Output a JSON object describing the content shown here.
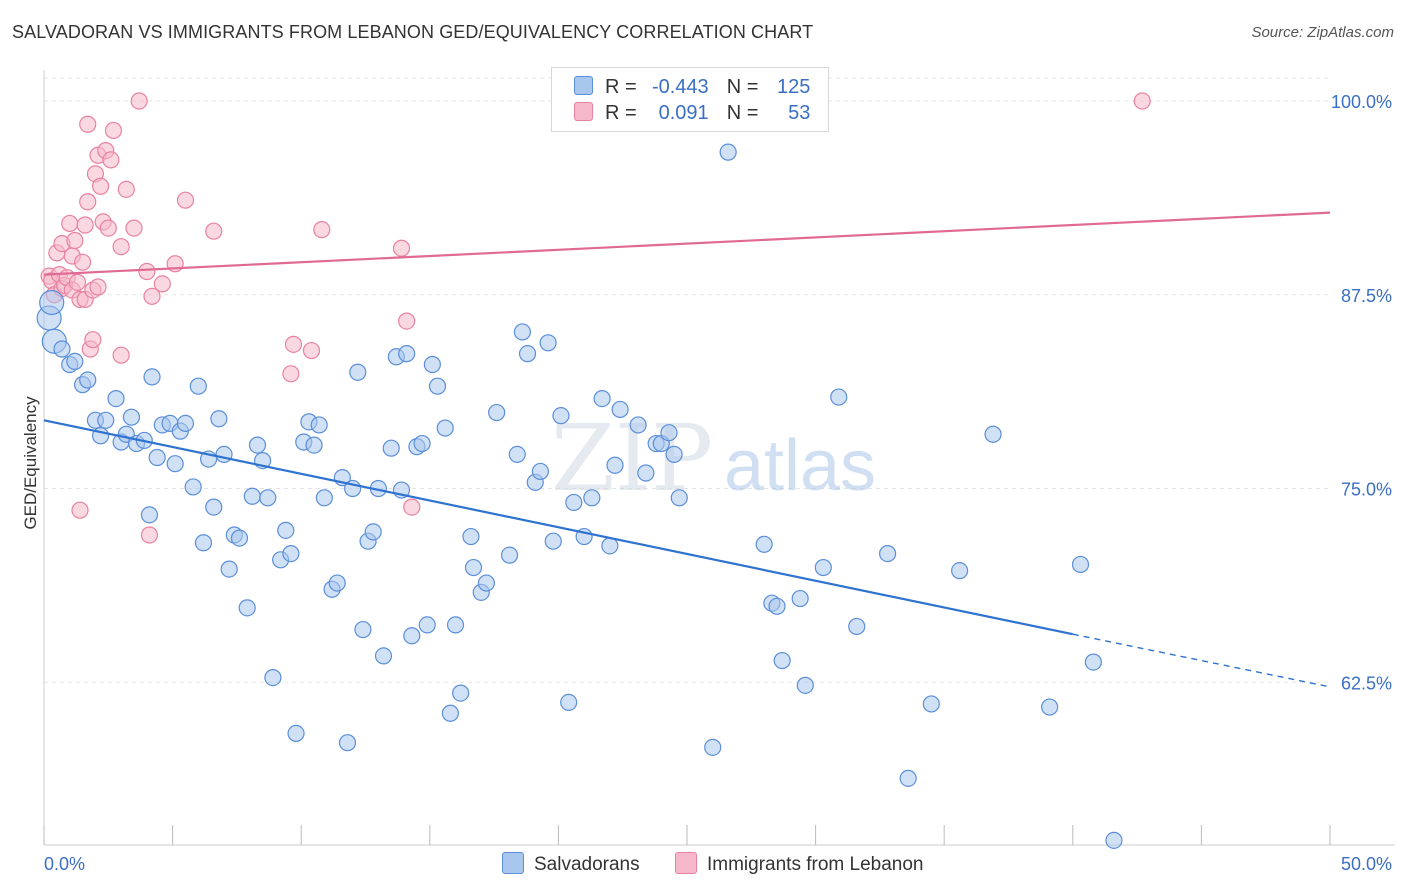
{
  "header": {
    "title": "SALVADORAN VS IMMIGRANTS FROM LEBANON GED/EQUIVALENCY CORRELATION CHART",
    "source": "Source: ZipAtlas.com"
  },
  "legend_stats": {
    "rows": [
      {
        "r_label": "R =",
        "r_value": "-0.443",
        "n_label": "N =",
        "n_value": "125"
      },
      {
        "r_label": "R =",
        "r_value": "0.091",
        "n_label": "N =",
        "n_value": "53"
      }
    ]
  },
  "bottom_legend": {
    "items": [
      {
        "label": "Salvadorans"
      },
      {
        "label": "Immigrants from Lebanon"
      }
    ]
  },
  "watermark": {
    "zip": "ZIP",
    "atlas": "atlas"
  },
  "colors": {
    "blue_fill": "#a9c6ec",
    "blue_stroke": "#5b8fd9",
    "blue_line": "#2f73d0",
    "pink_fill": "#f5b8cb",
    "pink_stroke": "#e8839f",
    "pink_line": "#e06a93",
    "axis_label": "#3a6fc4",
    "grid": "#e3e3e3"
  },
  "chart_data": {
    "type": "scatter",
    "title": "SALVADORAN VS IMMIGRANTS FROM LEBANON GED/EQUIVALENCY CORRELATION CHART",
    "xlabel": "",
    "ylabel": "GED/Equivalency",
    "xlim": [
      0,
      50
    ],
    "ylim": [
      52,
      102
    ],
    "x_tick_labels": [
      "0.0%",
      "50.0%"
    ],
    "y_ticks": [
      62.5,
      75.0,
      87.5,
      100.0
    ],
    "y_tick_labels": [
      "62.5%",
      "75.0%",
      "87.5%",
      "100.0%"
    ],
    "grid": true,
    "series": [
      {
        "name": "Salvadorans",
        "color": "blue",
        "r": -0.443,
        "n": 125,
        "trend": {
          "x0": 0,
          "y0": 79.4,
          "x1": 40,
          "y1": 65.6,
          "dash_x1": 50,
          "dash_y1": 62.2
        },
        "points": [
          [
            0.2,
            86.0
          ],
          [
            0.3,
            87.0
          ],
          [
            0.4,
            84.5
          ],
          [
            0.7,
            84.0
          ],
          [
            1.0,
            83.0
          ],
          [
            1.2,
            83.2
          ],
          [
            1.5,
            81.7
          ],
          [
            1.7,
            82.0
          ],
          [
            2.0,
            79.4
          ],
          [
            2.2,
            78.4
          ],
          [
            2.4,
            79.4
          ],
          [
            2.8,
            80.8
          ],
          [
            3.0,
            78.0
          ],
          [
            3.2,
            78.5
          ],
          [
            3.4,
            79.6
          ],
          [
            3.6,
            77.9
          ],
          [
            3.9,
            78.1
          ],
          [
            4.1,
            73.3
          ],
          [
            4.2,
            82.2
          ],
          [
            4.4,
            77.0
          ],
          [
            4.6,
            79.1
          ],
          [
            4.9,
            79.2
          ],
          [
            5.1,
            76.6
          ],
          [
            5.3,
            78.7
          ],
          [
            5.5,
            79.2
          ],
          [
            5.8,
            75.1
          ],
          [
            6.0,
            81.6
          ],
          [
            6.2,
            71.5
          ],
          [
            6.4,
            76.9
          ],
          [
            6.6,
            73.8
          ],
          [
            6.8,
            79.5
          ],
          [
            7.0,
            77.2
          ],
          [
            7.2,
            69.8
          ],
          [
            7.4,
            72.0
          ],
          [
            7.6,
            71.8
          ],
          [
            7.9,
            67.3
          ],
          [
            8.1,
            74.5
          ],
          [
            8.3,
            77.8
          ],
          [
            8.5,
            76.8
          ],
          [
            8.7,
            74.4
          ],
          [
            8.9,
            62.8
          ],
          [
            9.2,
            70.4
          ],
          [
            9.4,
            72.3
          ],
          [
            9.6,
            70.8
          ],
          [
            9.8,
            59.2
          ],
          [
            10.1,
            78.0
          ],
          [
            10.3,
            79.3
          ],
          [
            10.5,
            77.8
          ],
          [
            10.7,
            79.1
          ],
          [
            10.9,
            74.4
          ],
          [
            11.2,
            68.5
          ],
          [
            11.4,
            68.9
          ],
          [
            11.6,
            75.7
          ],
          [
            11.8,
            58.6
          ],
          [
            12.0,
            75.0
          ],
          [
            12.2,
            82.5
          ],
          [
            12.4,
            65.9
          ],
          [
            12.6,
            71.6
          ],
          [
            12.8,
            72.2
          ],
          [
            13.0,
            75.0
          ],
          [
            13.2,
            64.2
          ],
          [
            13.5,
            77.6
          ],
          [
            13.7,
            83.5
          ],
          [
            13.9,
            74.9
          ],
          [
            14.1,
            83.7
          ],
          [
            14.3,
            65.5
          ],
          [
            14.5,
            77.7
          ],
          [
            14.7,
            77.9
          ],
          [
            14.9,
            66.2
          ],
          [
            15.1,
            83.0
          ],
          [
            15.3,
            81.6
          ],
          [
            15.6,
            78.9
          ],
          [
            15.8,
            60.5
          ],
          [
            16.0,
            66.2
          ],
          [
            16.2,
            61.8
          ],
          [
            16.6,
            71.9
          ],
          [
            16.7,
            69.9
          ],
          [
            17.0,
            68.3
          ],
          [
            17.2,
            68.9
          ],
          [
            17.6,
            79.9
          ],
          [
            18.1,
            70.7
          ],
          [
            18.4,
            77.2
          ],
          [
            18.6,
            85.1
          ],
          [
            18.8,
            83.7
          ],
          [
            19.1,
            75.4
          ],
          [
            19.3,
            76.1
          ],
          [
            19.6,
            84.4
          ],
          [
            19.8,
            71.6
          ],
          [
            20.1,
            79.7
          ],
          [
            20.4,
            61.2
          ],
          [
            20.6,
            74.1
          ],
          [
            21.0,
            71.9
          ],
          [
            21.3,
            74.4
          ],
          [
            21.7,
            80.8
          ],
          [
            22.0,
            71.3
          ],
          [
            22.2,
            76.5
          ],
          [
            22.4,
            80.1
          ],
          [
            23.1,
            79.1
          ],
          [
            23.4,
            76.0
          ],
          [
            23.8,
            77.9
          ],
          [
            24.0,
            77.9
          ],
          [
            24.3,
            78.6
          ],
          [
            24.5,
            77.2
          ],
          [
            24.7,
            74.4
          ],
          [
            26.0,
            58.3
          ],
          [
            26.6,
            96.7
          ],
          [
            28.0,
            71.4
          ],
          [
            28.3,
            67.6
          ],
          [
            28.5,
            67.4
          ],
          [
            28.7,
            63.9
          ],
          [
            29.4,
            67.9
          ],
          [
            29.6,
            62.3
          ],
          [
            30.3,
            69.9
          ],
          [
            30.9,
            80.9
          ],
          [
            31.6,
            66.1
          ],
          [
            32.8,
            70.8
          ],
          [
            33.6,
            56.3
          ],
          [
            34.5,
            61.1
          ],
          [
            35.6,
            69.7
          ],
          [
            36.9,
            78.5
          ],
          [
            39.1,
            60.9
          ],
          [
            40.3,
            70.1
          ],
          [
            40.8,
            63.8
          ],
          [
            41.6,
            52.3
          ]
        ]
      },
      {
        "name": "Immigrants from Lebanon",
        "color": "pink",
        "r": 0.091,
        "n": 53,
        "trend": {
          "x0": 0,
          "y0": 88.8,
          "x1": 50,
          "y1": 92.8
        },
        "points": [
          [
            0.2,
            88.7
          ],
          [
            0.3,
            88.4
          ],
          [
            0.4,
            87.5
          ],
          [
            0.5,
            90.2
          ],
          [
            0.6,
            88.8
          ],
          [
            0.7,
            87.9
          ],
          [
            0.7,
            90.8
          ],
          [
            0.8,
            88.1
          ],
          [
            0.9,
            88.6
          ],
          [
            1.0,
            92.1
          ],
          [
            1.1,
            87.8
          ],
          [
            1.1,
            90.0
          ],
          [
            1.2,
            91.0
          ],
          [
            1.3,
            88.3
          ],
          [
            1.4,
            87.2
          ],
          [
            1.5,
            89.6
          ],
          [
            1.6,
            87.2
          ],
          [
            1.6,
            92.0
          ],
          [
            1.7,
            93.5
          ],
          [
            1.7,
            98.5
          ],
          [
            1.8,
            84.0
          ],
          [
            1.9,
            87.8
          ],
          [
            1.9,
            84.6
          ],
          [
            2.0,
            95.3
          ],
          [
            2.1,
            96.5
          ],
          [
            2.1,
            88.0
          ],
          [
            2.2,
            94.5
          ],
          [
            2.3,
            92.2
          ],
          [
            2.4,
            96.8
          ],
          [
            2.5,
            91.8
          ],
          [
            2.6,
            96.2
          ],
          [
            2.7,
            98.1
          ],
          [
            3.0,
            90.6
          ],
          [
            3.0,
            83.6
          ],
          [
            3.2,
            94.3
          ],
          [
            3.5,
            91.8
          ],
          [
            3.7,
            100.0
          ],
          [
            4.0,
            89.0
          ],
          [
            4.1,
            72.0
          ],
          [
            4.2,
            87.4
          ],
          [
            4.6,
            88.2
          ],
          [
            5.1,
            89.5
          ],
          [
            5.5,
            93.6
          ],
          [
            6.6,
            91.6
          ],
          [
            9.6,
            82.4
          ],
          [
            9.7,
            84.3
          ],
          [
            10.4,
            83.9
          ],
          [
            10.8,
            91.7
          ],
          [
            13.9,
            90.5
          ],
          [
            14.1,
            85.8
          ],
          [
            14.3,
            73.8
          ],
          [
            1.4,
            73.6
          ],
          [
            42.7,
            100.0
          ]
        ]
      }
    ]
  }
}
